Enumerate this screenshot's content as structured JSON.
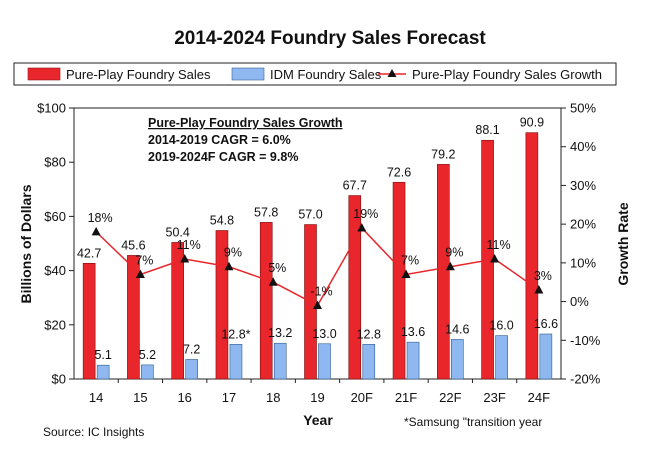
{
  "chart_data": {
    "type": "bar",
    "title": "2014-2024 Foundry Sales Forecast",
    "categories": [
      "14",
      "15",
      "16",
      "17",
      "18",
      "19",
      "20F",
      "21F",
      "22F",
      "23F",
      "24F"
    ],
    "xlabel": "Year",
    "ylabel": "Billions of Dollars",
    "y2label": "Growth Rate",
    "ylim": [
      0,
      100
    ],
    "y_ticks": [
      "$0",
      "$20",
      "$40",
      "$60",
      "$80",
      "$100"
    ],
    "y2lim": [
      -20,
      50
    ],
    "y2_ticks": [
      "-20%",
      "-10%",
      "0%",
      "10%",
      "20%",
      "30%",
      "40%",
      "50%"
    ],
    "series": [
      {
        "name": "Pure-Play Foundry Sales",
        "type": "bar",
        "color": "#e8262b",
        "values": [
          42.7,
          45.6,
          50.4,
          54.8,
          57.8,
          57.0,
          67.7,
          72.6,
          79.2,
          88.1,
          90.9
        ],
        "labels": [
          "42.7",
          "45.6",
          "50.4",
          "54.8",
          "57.8",
          "57.0",
          "67.7",
          "72.6",
          "79.2",
          "88.1",
          "90.9"
        ]
      },
      {
        "name": "IDM Foundry Sales",
        "type": "bar",
        "color": "#8fb8f0",
        "values": [
          5.1,
          5.2,
          7.2,
          12.8,
          13.2,
          13.0,
          12.8,
          13.6,
          14.6,
          16.0,
          16.6
        ],
        "labels": [
          "5.1",
          "5.2",
          "7.2",
          "12.8*",
          "13.2",
          "13.0",
          "12.8",
          "13.6",
          "14.6",
          "16.0",
          "16.6"
        ]
      },
      {
        "name": "Pure-Play Foundry Sales Growth",
        "type": "line",
        "axis": "right",
        "color": "#e8262b",
        "values": [
          18,
          7,
          11,
          9,
          5,
          -1,
          19,
          7,
          9,
          11,
          3
        ],
        "labels": [
          "18%",
          "7%",
          "11%",
          "9%",
          "5%",
          "-1%",
          "19%",
          "7%",
          "9%",
          "11%",
          "3%"
        ]
      }
    ],
    "annotations": {
      "heading": "Pure-Play Foundry Sales Growth",
      "lines": [
        "2014-2019 CAGR = 6.0%",
        "2019-2024F CAGR = 9.8%"
      ]
    },
    "legend_position": "top",
    "grid": false
  },
  "source": "Source: IC Insights",
  "footnote": "*Samsung \"transition year"
}
